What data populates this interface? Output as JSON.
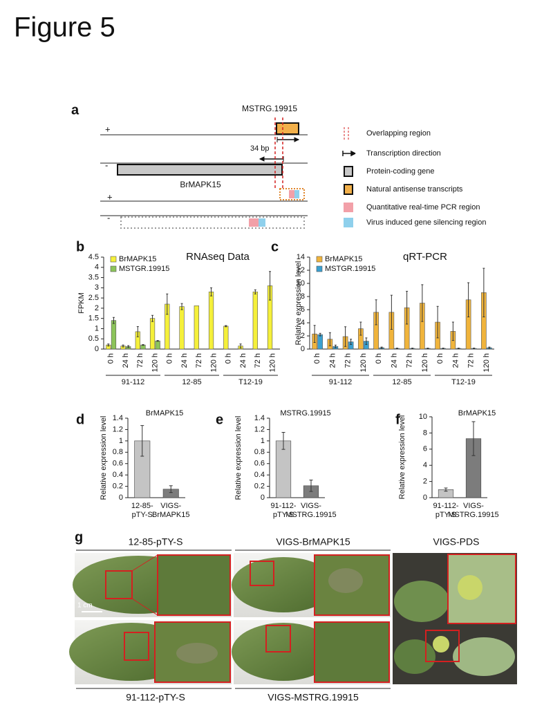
{
  "title": "Figure 5",
  "panel_a": {
    "label": "a",
    "gene_nat": "MSTRG.19915",
    "distance": "34 bp",
    "gene_coding": "BrMAPK15",
    "strands": [
      "+",
      "-",
      "+",
      "-"
    ],
    "legend": [
      "Overlapping region",
      "Transcription direction",
      "Protein-coding gene",
      "Natural antisense transcripts",
      "Quantitative real-time PCR region",
      "Virus induced gene silencing region"
    ]
  },
  "chart_data": [
    {
      "panel": "b",
      "type": "bar",
      "title": "RNAseq Data",
      "ylabel": "FPKM",
      "ylim": [
        0,
        4.5
      ],
      "yticks": [
        0,
        0.5,
        1,
        1.5,
        2,
        2.5,
        3,
        3.5,
        4,
        4.5
      ],
      "groups": [
        {
          "name": "91-112",
          "categories": [
            "0 h",
            "24 h",
            "72 h",
            "120 h"
          ]
        },
        {
          "name": "12-85",
          "categories": [
            "0 h",
            "24 h",
            "72 h",
            "120 h"
          ]
        },
        {
          "name": "T12-19",
          "categories": [
            "0 h",
            "24 h",
            "72 h",
            "120 h"
          ]
        }
      ],
      "series": [
        {
          "name": "BrMAPK15",
          "color": "#f5f03a",
          "values": [
            0.2,
            0.15,
            0.85,
            1.5,
            2.2,
            2.08,
            2.12,
            2.8,
            1.12,
            0.15,
            2.8,
            3.1
          ],
          "errors": [
            0.05,
            0.05,
            0.25,
            0.15,
            0.5,
            0.15,
            0,
            0.2,
            0.03,
            0.1,
            0.1,
            0.7
          ]
        },
        {
          "name": "MSTGR.19915",
          "color": "#8cc45a",
          "values": [
            1.4,
            0.12,
            0.2,
            0.4,
            0,
            0,
            0,
            0,
            0,
            0,
            0,
            0
          ],
          "errors": [
            0.15,
            0.05,
            0.02,
            0.02,
            0,
            0,
            0,
            0,
            0,
            0,
            0,
            0
          ]
        }
      ]
    },
    {
      "panel": "c",
      "type": "bar",
      "title": "qRT-PCR",
      "ylabel": "Relative expression level",
      "ylim": [
        0,
        14
      ],
      "yticks": [
        0,
        2,
        4,
        6,
        8,
        10,
        12,
        14
      ],
      "groups": [
        {
          "name": "91-112",
          "categories": [
            "0 h",
            "24 h",
            "72 h",
            "120 h"
          ]
        },
        {
          "name": "12-85",
          "categories": [
            "0 h",
            "24 h",
            "72 h",
            "120 h"
          ]
        },
        {
          "name": "T12-19",
          "categories": [
            "0 h",
            "24 h",
            "72 h",
            "120 h"
          ]
        }
      ],
      "series": [
        {
          "name": "BrMAPK15",
          "color": "#f0b43c",
          "values": [
            2.3,
            1.5,
            1.9,
            3.1,
            5.6,
            5.6,
            6.3,
            7.0,
            4.1,
            2.7,
            7.5,
            8.6
          ],
          "errors": [
            1.3,
            1.0,
            1.5,
            1.0,
            1.9,
            2.6,
            2.5,
            2.8,
            2.4,
            1.4,
            2.6,
            3.7
          ]
        },
        {
          "name": "MSTGR.19915",
          "color": "#3aa0d0",
          "values": [
            2.2,
            0.4,
            1.1,
            1.2,
            0.2,
            0.1,
            0.1,
            0.1,
            0.1,
            0.1,
            0.1,
            0.2
          ],
          "errors": [
            0.2,
            0.2,
            0.4,
            0.5,
            0.1,
            0.05,
            0.05,
            0.05,
            0.05,
            0.05,
            0.05,
            0.1
          ]
        }
      ]
    },
    {
      "panel": "d",
      "type": "bar",
      "title": "BrMAPK15",
      "ylabel": "Relative expression level",
      "ylim": [
        0,
        1.4
      ],
      "yticks": [
        0,
        0.2,
        0.4,
        0.6,
        0.8,
        1,
        1.2,
        1.4
      ],
      "categories": [
        [
          "12-85-",
          "pTY-S"
        ],
        [
          "VIGS-",
          "BrMAPK15"
        ]
      ],
      "values": [
        1.0,
        0.15
      ],
      "errors": [
        0.27,
        0.06
      ],
      "colors": [
        "#c4c4c4",
        "#7c7c7c"
      ]
    },
    {
      "panel": "e",
      "type": "bar",
      "title": "MSTRG.19915",
      "ylabel": "Relative expression level",
      "ylim": [
        0,
        1.4
      ],
      "yticks": [
        0,
        0.2,
        0.4,
        0.6,
        0.8,
        1,
        1.2,
        1.4
      ],
      "categories": [
        [
          "91-112-",
          "pTY-S"
        ],
        [
          "VIGS-",
          "MSTRG.19915"
        ]
      ],
      "values": [
        1.0,
        0.21
      ],
      "errors": [
        0.15,
        0.1
      ],
      "colors": [
        "#c4c4c4",
        "#7c7c7c"
      ]
    },
    {
      "panel": "f",
      "type": "bar",
      "title": "BrMAPK15",
      "ylabel": "Relative expression level",
      "ylim": [
        0,
        10
      ],
      "yticks": [
        0,
        2,
        4,
        6,
        8,
        10
      ],
      "categories": [
        [
          "91-112-",
          "pTY-S"
        ],
        [
          "VIGS-",
          "MSTRG.19915"
        ]
      ],
      "values": [
        1.0,
        7.3
      ],
      "errors": [
        0.2,
        2.1
      ],
      "colors": [
        "#c4c4c4",
        "#7c7c7c"
      ]
    }
  ],
  "panel_g": {
    "label": "g",
    "top_titles": [
      "12-85-pTY-S",
      "VIGS-BrMAPK15",
      "VIGS-PDS"
    ],
    "bottom_titles": [
      "91-112-pTY-S",
      "VIGS-MSTRG.19915"
    ],
    "scale": "1 cm"
  }
}
